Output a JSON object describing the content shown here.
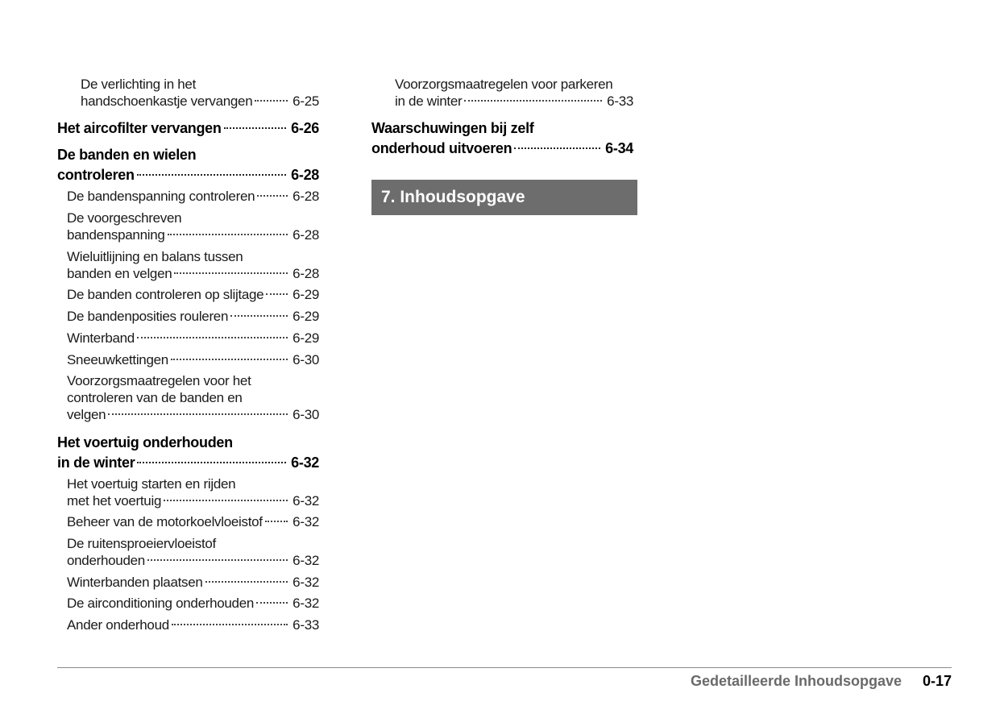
{
  "left_column": [
    {
      "level": 2,
      "lines": [
        "De verlichting in het",
        "handschoenkastje vervangen"
      ],
      "page": "6-25"
    },
    {
      "level": 0,
      "lines": [
        "Het aircofilter vervangen"
      ],
      "page": "6-26"
    },
    {
      "level": 0,
      "lines": [
        "De banden en wielen",
        "controleren"
      ],
      "page": "6-28"
    },
    {
      "level": 1,
      "lines": [
        "De bandenspanning controleren"
      ],
      "page": "6-28"
    },
    {
      "level": 1,
      "lines": [
        "De voorgeschreven",
        "bandenspanning"
      ],
      "page": "6-28"
    },
    {
      "level": 1,
      "lines": [
        "Wieluitlijning en balans tussen",
        "banden en velgen"
      ],
      "page": "6-28"
    },
    {
      "level": 1,
      "lines": [
        "De banden controleren op slijtage"
      ],
      "page": "6-29"
    },
    {
      "level": 1,
      "lines": [
        "De bandenposities rouleren"
      ],
      "page": "6-29"
    },
    {
      "level": 1,
      "lines": [
        "Winterband"
      ],
      "page": "6-29"
    },
    {
      "level": 1,
      "lines": [
        "Sneeuwkettingen"
      ],
      "page": "6-30"
    },
    {
      "level": 1,
      "lines": [
        "Voorzorgsmaatregelen voor het",
        "controleren van de banden en",
        "velgen"
      ],
      "page": "6-30"
    },
    {
      "level": 0,
      "lines": [
        "Het voertuig onderhouden",
        "in de winter"
      ],
      "page": "6-32"
    },
    {
      "level": 1,
      "lines": [
        "Het voertuig starten en rijden",
        "met het voertuig"
      ],
      "page": "6-32"
    },
    {
      "level": 1,
      "lines": [
        "Beheer van de motorkoelvloeistof"
      ],
      "page": "6-32"
    },
    {
      "level": 1,
      "lines": [
        "De ruitensproeiervloeistof",
        "onderhouden"
      ],
      "page": "6-32"
    },
    {
      "level": 1,
      "lines": [
        "Winterbanden plaatsen"
      ],
      "page": "6-32"
    },
    {
      "level": 1,
      "lines": [
        "De airconditioning onderhouden"
      ],
      "page": "6-32"
    },
    {
      "level": 1,
      "lines": [
        "Ander onderhoud"
      ],
      "page": "6-33"
    }
  ],
  "right_column": [
    {
      "level": 2,
      "lines": [
        "Voorzorgsmaatregelen voor parkeren",
        "in de winter"
      ],
      "page": "6-33"
    },
    {
      "level": 0,
      "lines": [
        "Waarschuwingen bij zelf",
        "onderhoud uitvoeren"
      ],
      "page": "6-34"
    }
  ],
  "chapter_banner": "7. Inhoudsopgave",
  "footer": {
    "title": "Gedetailleerde Inhoudsopgave",
    "page_number": "0-17"
  },
  "colors": {
    "banner": "#6d6d6d",
    "footer_title": "#6a6a6a"
  }
}
